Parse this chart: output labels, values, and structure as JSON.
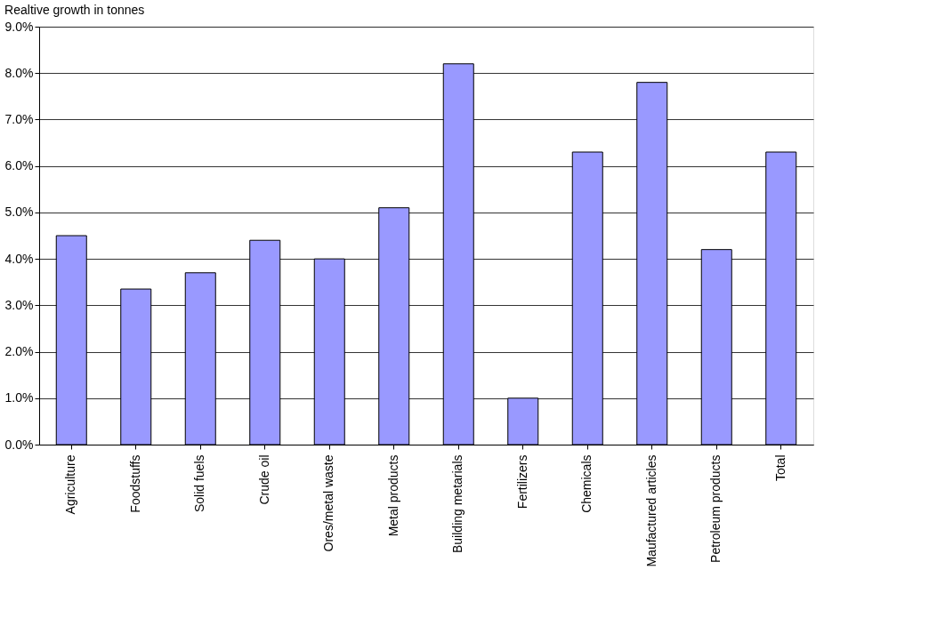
{
  "chart_data": {
    "type": "bar",
    "title": "Realtive growth in tonnes",
    "categories": [
      "Agriculture",
      "Foodstuffs",
      "Solid fuels",
      "Crude oil",
      "Ores/metal waste",
      "Metal products",
      "Building metarials",
      "Fertilizers",
      "Chemicals",
      "Maufactured articles",
      "Petroleum products",
      "Total"
    ],
    "values": [
      4.5,
      3.35,
      3.7,
      4.4,
      4.0,
      5.1,
      8.2,
      1.0,
      6.3,
      7.8,
      4.2,
      6.3
    ],
    "color": "#9999ff",
    "ylim": [
      0,
      9
    ],
    "yticks": [
      {
        "value": 0,
        "label": "0.0%"
      },
      {
        "value": 1,
        "label": "1.0%"
      },
      {
        "value": 2,
        "label": "2.0%"
      },
      {
        "value": 3,
        "label": "3.0%"
      },
      {
        "value": 4,
        "label": "4.0%"
      },
      {
        "value": 5,
        "label": "5.0%"
      },
      {
        "value": 6,
        "label": "6.0%"
      },
      {
        "value": 7,
        "label": "7.0%"
      },
      {
        "value": 8,
        "label": "8.0%"
      },
      {
        "value": 9,
        "label": "9.0%"
      }
    ],
    "grid": "y"
  }
}
